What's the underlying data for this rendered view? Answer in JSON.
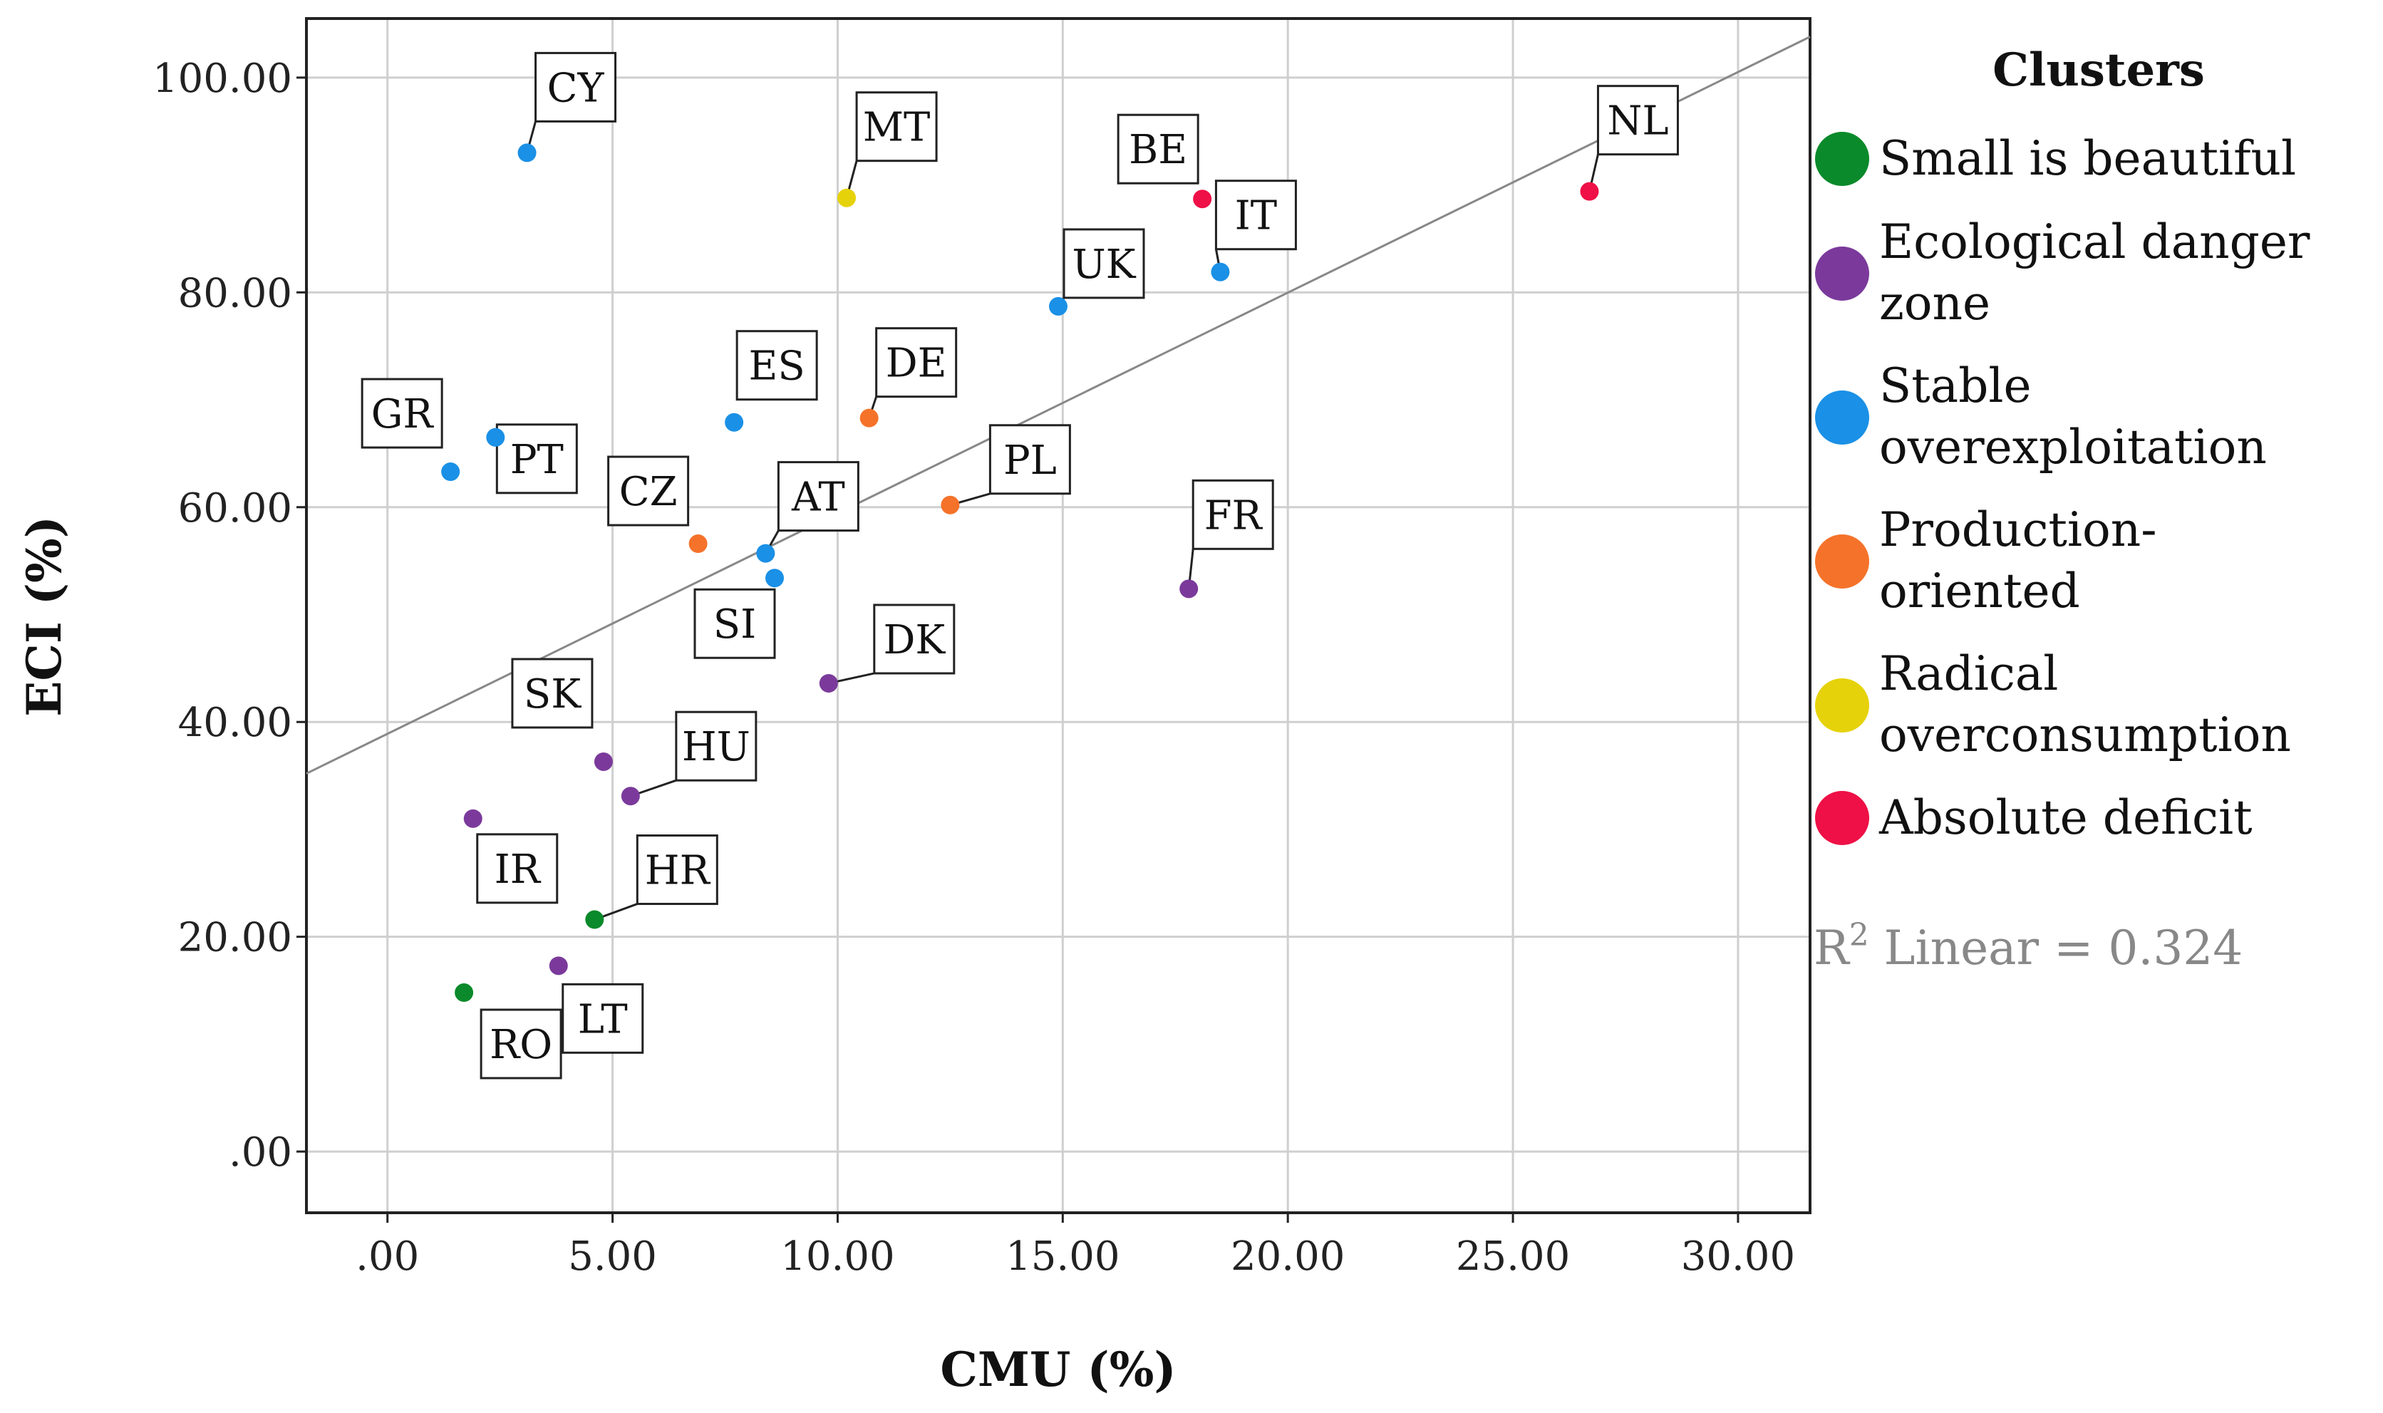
{
  "chart_data": {
    "type": "scatter",
    "xlabel": "CMU (%)",
    "ylabel": "ECI (%)",
    "xlim": [
      -1.8,
      31.6
    ],
    "ylim": [
      -5.7,
      105.5
    ],
    "x_ticks": [
      0,
      5,
      10,
      15,
      20,
      25,
      30
    ],
    "x_tick_labels": [
      ".00",
      "5.00",
      "10.00",
      "15.00",
      "20.00",
      "25.00",
      "30.00"
    ],
    "y_ticks": [
      0,
      20,
      40,
      60,
      80,
      100
    ],
    "y_tick_labels": [
      ".00",
      "20.00",
      "40.00",
      "60.00",
      "80.00",
      "100.00"
    ],
    "grid": true,
    "legend": {
      "title": "Clusters",
      "placement": "right",
      "entries": [
        {
          "lines": [
            "Small is beautiful"
          ],
          "color": "#0a8a2a"
        },
        {
          "lines": [
            "Ecological danger",
            "zone"
          ],
          "color": "#7b3a9b"
        },
        {
          "lines": [
            "Stable",
            "overexploitation"
          ],
          "color": "#1a90e6"
        },
        {
          "lines": [
            "Production-",
            "oriented"
          ],
          "color": "#f5722a"
        },
        {
          "lines": [
            "Radical",
            "overconsumption"
          ],
          "color": "#e6d20a"
        },
        {
          "lines": [
            "Absolute deficit"
          ],
          "color": "#ee1046"
        }
      ]
    },
    "fit": {
      "type": "linear",
      "r2_prefix": "R",
      "r2_sup": "2",
      "r2_suffix": " Linear = 0.324",
      "x0": -1.8,
      "y0": 35.2,
      "x1": 31.6,
      "y1": 103.8,
      "color": "#888888"
    },
    "points": [
      {
        "label": "CY",
        "x": 3.1,
        "y": 93.0,
        "cluster": 2
      },
      {
        "label": "MT",
        "x": 10.2,
        "y": 88.8,
        "cluster": 4
      },
      {
        "label": "BE",
        "x": 18.1,
        "y": 88.7,
        "cluster": 5
      },
      {
        "label": "NL",
        "x": 26.7,
        "y": 89.4,
        "cluster": 5
      },
      {
        "label": "IT",
        "x": 18.5,
        "y": 81.9,
        "cluster": 2
      },
      {
        "label": "UK",
        "x": 14.9,
        "y": 78.7,
        "cluster": 2
      },
      {
        "label": "ES",
        "x": 7.7,
        "y": 67.9,
        "cluster": 2
      },
      {
        "label": "DE",
        "x": 10.7,
        "y": 68.3,
        "cluster": 3
      },
      {
        "label": "GR",
        "x": 1.4,
        "y": 63.3,
        "cluster": 2
      },
      {
        "label": "PT",
        "x": 2.4,
        "y": 66.5,
        "cluster": 2
      },
      {
        "label": "PL",
        "x": 12.5,
        "y": 60.2,
        "cluster": 3
      },
      {
        "label": "CZ",
        "x": 6.9,
        "y": 56.6,
        "cluster": 3
      },
      {
        "label": "AT",
        "x": 8.4,
        "y": 55.7,
        "cluster": 2
      },
      {
        "label": "SI",
        "x": 8.6,
        "y": 53.4,
        "cluster": 2
      },
      {
        "label": "FR",
        "x": 17.8,
        "y": 52.4,
        "cluster": 1
      },
      {
        "label": "DK",
        "x": 9.8,
        "y": 43.6,
        "cluster": 1
      },
      {
        "label": "SK",
        "x": 4.8,
        "y": 36.3,
        "cluster": 1
      },
      {
        "label": "HU",
        "x": 5.4,
        "y": 33.1,
        "cluster": 1
      },
      {
        "label": "IR",
        "x": 1.9,
        "y": 31.0,
        "cluster": 1
      },
      {
        "label": "HR",
        "x": 4.6,
        "y": 21.6,
        "cluster": 0
      },
      {
        "label": "LT",
        "x": 3.8,
        "y": 17.3,
        "cluster": 1
      },
      {
        "label": "RO",
        "x": 1.7,
        "y": 14.8,
        "cluster": 0
      }
    ]
  }
}
